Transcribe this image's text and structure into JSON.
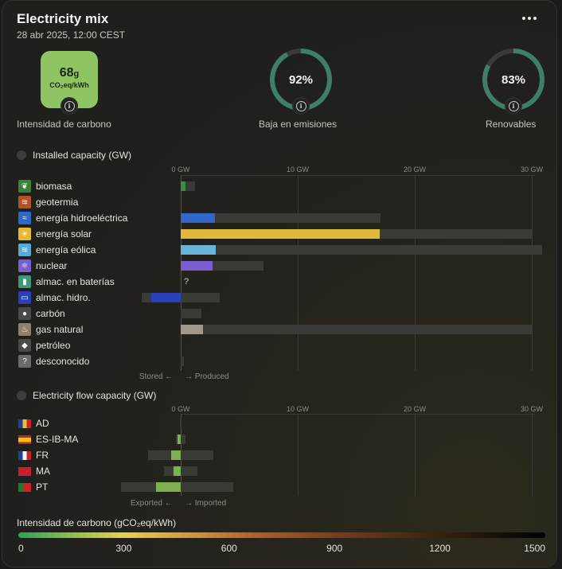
{
  "header": {
    "title": "Electricity mix",
    "datetime": "28 abr 2025, 12:00 CEST"
  },
  "kpis": {
    "carbon": {
      "value": "68",
      "unit_small": "g",
      "unit": "CO₂eq/kWh",
      "label": "Intensidad de carbono",
      "color": "#8fc462"
    },
    "low_emission": {
      "value": "92%",
      "percent": 92,
      "label": "Baja en emisiones"
    },
    "renewable": {
      "value": "83%",
      "percent": 83,
      "label": "Renovables"
    }
  },
  "capacity": {
    "title": "Installed capacity (GW)",
    "axis_ticks": [
      "0 GW",
      "10 GW",
      "20 GW",
      "30 GW"
    ],
    "axis_max_gw": 31,
    "footer_left": "Stored ←",
    "footer_right": "→ Produced",
    "rows": [
      {
        "label": "biomasa",
        "icon": "leaf-icon",
        "icon_color": "#3f7f3a",
        "color": "#3f8a4a",
        "value_gw": 0.4,
        "capacity_gw": 1.2
      },
      {
        "label": "geotermia",
        "icon": "heat-waves-icon",
        "icon_color": "#b0532a",
        "color": "#b0532a",
        "value_gw": 0,
        "capacity_gw": 0
      },
      {
        "label": "energía hidroeléctrica",
        "icon": "water-waves-icon",
        "icon_color": "#2f68c8",
        "color": "#2f68c8",
        "value_gw": 2.9,
        "capacity_gw": 17.1
      },
      {
        "label": "energía solar",
        "icon": "sun-icon",
        "icon_color": "#e8b830",
        "color": "#e0b83a",
        "value_gw": 17.0,
        "capacity_gw": 30.1
      },
      {
        "label": "energía eólica",
        "icon": "wind-icon",
        "icon_color": "#5aa8d8",
        "color": "#6ab4dc",
        "value_gw": 3.0,
        "capacity_gw": 30.9
      },
      {
        "label": "nuclear",
        "icon": "atom-icon",
        "icon_color": "#7a5ed0",
        "color": "#7a5ed0",
        "value_gw": 2.7,
        "capacity_gw": 7.1
      },
      {
        "label": "almac. en baterías",
        "icon": "battery-icon",
        "icon_color": "#3c9a78",
        "color": "#3c9a78",
        "value_gw": null,
        "capacity_gw": null,
        "unknown": "?"
      },
      {
        "label": "almac. hidro.",
        "icon": "reservoir-icon",
        "icon_color": "#2a3fb8",
        "color": "#2a3fb8",
        "value_gw": -2.5,
        "stored_capacity_gw": -3.3,
        "capacity_gw": 3.3
      },
      {
        "label": "carbón",
        "icon": "coal-icon",
        "icon_color": "#4a4a46",
        "color": "#5a5a56",
        "value_gw": 0,
        "capacity_gw": 1.8
      },
      {
        "label": "gas natural",
        "icon": "flame-icon",
        "icon_color": "#8a826e",
        "color": "#a0988a",
        "value_gw": 1.9,
        "capacity_gw": 30.1
      },
      {
        "label": "petróleo",
        "icon": "oil-drop-icon",
        "icon_color": "#4a4a46",
        "color": "#5a5a56",
        "value_gw": 0,
        "capacity_gw": 0
      },
      {
        "label": "desconocido",
        "icon": "question-icon",
        "icon_color": "#6a6a66",
        "color": "#6a6a66",
        "value_gw": 0,
        "capacity_gw": 0.3
      }
    ]
  },
  "flow": {
    "title": "Electricity flow capacity (GW)",
    "axis_ticks": [
      "0 GW",
      "10 GW",
      "20 GW",
      "30 GW"
    ],
    "footer_left": "Exported ←",
    "footer_right": "→ Imported",
    "rows": [
      {
        "label": "AD",
        "flag": "andorra-flag",
        "value_gw": 0,
        "export_cap_gw": -0.1,
        "import_cap_gw": 0.1
      },
      {
        "label": "ES-IB-MA",
        "flag": "spain-flag",
        "value_gw": -0.3,
        "export_cap_gw": -0.4,
        "import_cap_gw": 0.4
      },
      {
        "label": "FR",
        "flag": "france-flag",
        "value_gw": -0.8,
        "export_cap_gw": -2.8,
        "import_cap_gw": 2.8
      },
      {
        "label": "MA",
        "flag": "morocco-flag",
        "value_gw": -0.6,
        "export_cap_gw": -1.4,
        "import_cap_gw": 1.4
      },
      {
        "label": "PT",
        "flag": "portugal-flag",
        "value_gw": -2.1,
        "export_cap_gw": -5.1,
        "import_cap_gw": 4.5
      }
    ]
  },
  "scale": {
    "title": "Intensidad de carbono (gCO₂eq/kWh)",
    "ticks": [
      "0",
      "300",
      "600",
      "900",
      "1200",
      "1500"
    ]
  },
  "colors": {
    "flow_bar": "#7eb050",
    "capacity_bg": "#3a3a36",
    "gauge_arc": "#3f7f68"
  }
}
